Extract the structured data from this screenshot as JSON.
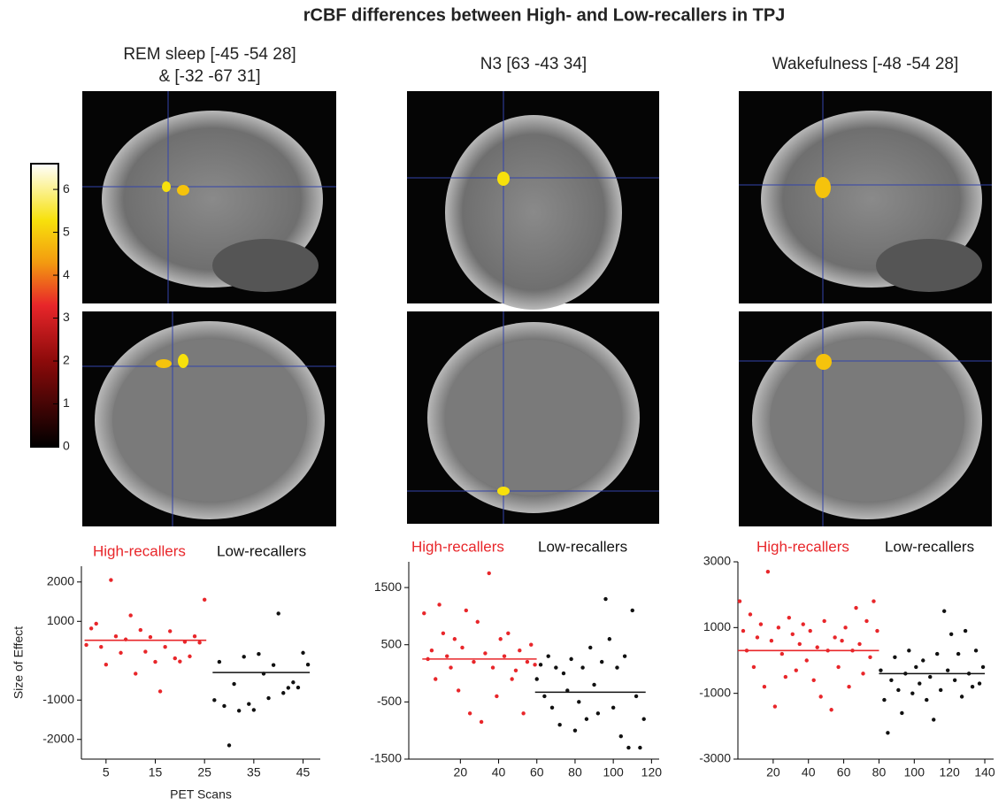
{
  "title": "rCBF differences between High- and Low-recallers in TPJ",
  "panels": [
    {
      "title": [
        "REM sleep [-45 -54 28]",
        "& [-32 -67 31]"
      ]
    },
    {
      "title": [
        "N3 [63 -43 34]"
      ]
    },
    {
      "title": [
        "Wakefulness [-48 -54 28]"
      ]
    }
  ],
  "colorbar": {
    "lim": [
      0,
      6.6
    ],
    "ticks": [
      0,
      1,
      2,
      3,
      4,
      5,
      6
    ]
  },
  "chart_data": [
    {
      "type": "scatter",
      "ylabel": "Size of Effect",
      "xlabel": "PET Scans",
      "xlim": [
        0,
        48.5
      ],
      "xticks": [
        5,
        15,
        25,
        35,
        45
      ],
      "ylim": [
        -2500,
        2400
      ],
      "yticks": [
        2000,
        1000,
        -1000,
        -2000
      ],
      "series": [
        {
          "name": "High-recallers",
          "color": "#e8262a",
          "mean": 520,
          "x": [
            1,
            2,
            3,
            4,
            5,
            6,
            7,
            8,
            9,
            10,
            11,
            12,
            13,
            14,
            15,
            16,
            17,
            18,
            19,
            20,
            21,
            22,
            23,
            24,
            25
          ],
          "values": [
            400,
            820,
            940,
            350,
            -100,
            2050,
            620,
            200,
            540,
            1150,
            -330,
            780,
            230,
            600,
            -30,
            -780,
            350,
            750,
            60,
            -20,
            480,
            110,
            620,
            460,
            1550
          ]
        },
        {
          "name": "Low-recallers",
          "color": "#111111",
          "mean": -300,
          "x": [
            27,
            28,
            29,
            30,
            31,
            32,
            33,
            34,
            35,
            36,
            37,
            38,
            39,
            40,
            41,
            42,
            43,
            44,
            45,
            46
          ],
          "values": [
            -1000,
            -30,
            -1150,
            -2150,
            -590,
            -1270,
            100,
            -1100,
            -1250,
            170,
            -330,
            -950,
            -110,
            1200,
            -820,
            -690,
            -550,
            -680,
            200,
            -100
          ]
        }
      ]
    },
    {
      "type": "scatter",
      "xlim": [
        -7,
        124
      ],
      "xticks": [
        20,
        40,
        60,
        80,
        100,
        120
      ],
      "ylim": [
        -1500,
        1950
      ],
      "yticks": [
        1500,
        500,
        -500,
        -1500
      ],
      "series": [
        {
          "name": "High-recallers",
          "color": "#e8262a",
          "mean": 250,
          "x": [
            1,
            3,
            5,
            7,
            9,
            11,
            13,
            15,
            17,
            19,
            21,
            23,
            25,
            27,
            29,
            31,
            33,
            35,
            37,
            39,
            41,
            43,
            45,
            47,
            49,
            51,
            53,
            55,
            57,
            59
          ],
          "values": [
            1050,
            250,
            400,
            -100,
            1200,
            700,
            300,
            100,
            600,
            -300,
            450,
            1100,
            -700,
            200,
            900,
            -850,
            350,
            1750,
            100,
            -400,
            600,
            300,
            700,
            -100,
            50,
            400,
            -700,
            200,
            500,
            150
          ]
        },
        {
          "name": "Low-recallers",
          "color": "#111111",
          "mean": -330,
          "x": [
            60,
            62,
            64,
            66,
            68,
            70,
            72,
            74,
            76,
            78,
            80,
            82,
            84,
            86,
            88,
            90,
            92,
            94,
            96,
            98,
            100,
            102,
            104,
            106,
            108,
            110,
            112,
            114,
            116
          ],
          "values": [
            -100,
            150,
            -400,
            300,
            -600,
            100,
            -900,
            0,
            -300,
            250,
            -1000,
            -500,
            100,
            -800,
            450,
            -200,
            -700,
            200,
            1300,
            600,
            -600,
            100,
            -1100,
            300,
            -1300,
            1100,
            -400,
            -1300,
            -800
          ]
        }
      ]
    },
    {
      "type": "scatter",
      "xlim": [
        0,
        145
      ],
      "xticks": [
        20,
        40,
        60,
        80,
        100,
        120,
        140
      ],
      "ylim": [
        -3000,
        3000
      ],
      "yticks": [
        3000,
        1000,
        -1000,
        -3000
      ],
      "series": [
        {
          "name": "High-recallers",
          "color": "#e8262a",
          "mean": 300,
          "x": [
            1,
            3,
            5,
            7,
            9,
            11,
            13,
            15,
            17,
            19,
            21,
            23,
            25,
            27,
            29,
            31,
            33,
            35,
            37,
            39,
            41,
            43,
            45,
            47,
            49,
            51,
            53,
            55,
            57,
            59,
            61,
            63,
            65,
            67,
            69,
            71,
            73,
            75,
            77,
            79
          ],
          "values": [
            1800,
            900,
            300,
            1400,
            -200,
            700,
            1100,
            -800,
            2700,
            600,
            -1400,
            1000,
            200,
            -500,
            1300,
            800,
            -300,
            500,
            1100,
            0,
            900,
            -600,
            400,
            -1100,
            1200,
            300,
            -1500,
            700,
            -200,
            600,
            1000,
            -800,
            300,
            1600,
            500,
            -400,
            1200,
            100,
            1800,
            900
          ]
        },
        {
          "name": "Low-recallers",
          "color": "#111111",
          "mean": -400,
          "x": [
            81,
            83,
            85,
            87,
            89,
            91,
            93,
            95,
            97,
            99,
            101,
            103,
            105,
            107,
            109,
            111,
            113,
            115,
            117,
            119,
            121,
            123,
            125,
            127,
            129,
            131,
            133,
            135,
            137,
            139
          ],
          "values": [
            -300,
            -1200,
            -2200,
            -600,
            100,
            -900,
            -1600,
            -400,
            300,
            -1000,
            -200,
            -700,
            0,
            -1200,
            -500,
            -1800,
            200,
            -900,
            1500,
            -300,
            800,
            -600,
            200,
            -1100,
            900,
            -400,
            -800,
            300,
            -700,
            -200
          ]
        }
      ]
    }
  ]
}
